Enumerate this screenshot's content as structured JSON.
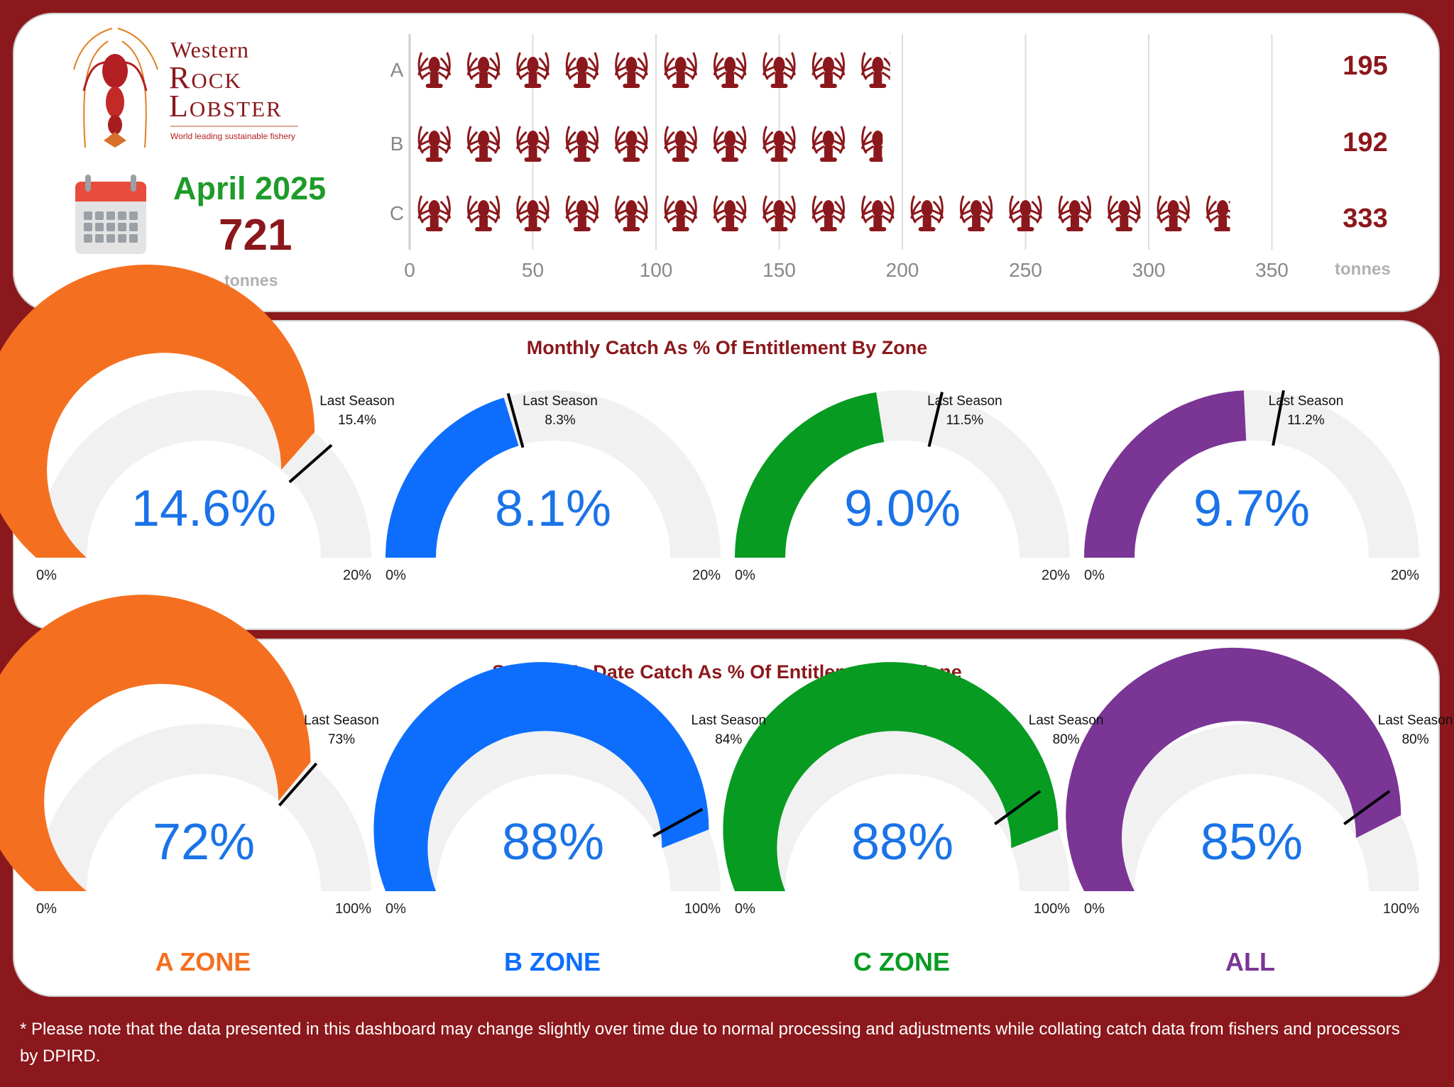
{
  "logo": {
    "line1": "Western",
    "line2": "Rock",
    "line3": "Lobster",
    "tagline": "World leading sustainable fishery"
  },
  "summary": {
    "month": "April 2025",
    "total": "721",
    "unit": "tonnes",
    "icon": "calendar-icon"
  },
  "catch_chart": {
    "unit_label": "tonnes",
    "values_display": [
      "195",
      "192",
      "333"
    ]
  },
  "monthly": {
    "title": "Monthly Catch As % Of Entitlement By Zone",
    "last_season_label": "Last Season",
    "gauges": [
      {
        "value_label": "14.6%",
        "last_label": "15.4%",
        "min_label": "0%",
        "max_label": "20%"
      },
      {
        "value_label": "8.1%",
        "last_label": "8.3%",
        "min_label": "0%",
        "max_label": "20%"
      },
      {
        "value_label": "9.0%",
        "last_label": "11.5%",
        "min_label": "0%",
        "max_label": "20%"
      },
      {
        "value_label": "9.7%",
        "last_label": "11.2%",
        "min_label": "0%",
        "max_label": "20%"
      }
    ]
  },
  "season": {
    "title": "Season To Date Catch As % Of Entitlement By Zone",
    "last_season_label": "Last Season",
    "gauges": [
      {
        "value_label": "72%",
        "last_label": "73%",
        "min_label": "0%",
        "max_label": "100%"
      },
      {
        "value_label": "88%",
        "last_label": "84%",
        "min_label": "0%",
        "max_label": "100%"
      },
      {
        "value_label": "88%",
        "last_label": "80%",
        "min_label": "0%",
        "max_label": "100%"
      },
      {
        "value_label": "85%",
        "last_label": "80%",
        "min_label": "0%",
        "max_label": "100%"
      }
    ]
  },
  "zones": [
    "A ZONE",
    "B ZONE",
    "C ZONE",
    "ALL"
  ],
  "footnote": "* Please note that the data presented in this dashboard may change slightly over time due to normal processing and adjustments while collating catch data from fishers and processors by DPIRD.",
  "colors": {
    "background": "#8b181c",
    "brand_red": "#8b181c",
    "month_green": "#1e9b2a",
    "gauge_track": "#f1f1f1",
    "value_text": "#1a73e8",
    "zone_a": "#f47020",
    "zone_b": "#0d6efd",
    "zone_c": "#079b22",
    "zone_all": "#7a3595"
  },
  "chart_data": [
    {
      "type": "bar",
      "title": "",
      "xlabel": "",
      "ylabel": "",
      "categories": [
        "A",
        "B",
        "C"
      ],
      "values": [
        195,
        192,
        333
      ],
      "units": "tonnes",
      "xlim": [
        0,
        350
      ],
      "xticks": [
        0,
        50,
        100,
        150,
        200,
        250,
        300,
        350
      ],
      "grid": true,
      "orientation": "horizontal"
    },
    {
      "type": "gauge",
      "title": "Monthly Catch As % Of Entitlement By Zone",
      "categories": [
        "A ZONE",
        "B ZONE",
        "C ZONE",
        "ALL"
      ],
      "values": [
        14.6,
        8.1,
        9.0,
        9.7
      ],
      "last_season": [
        15.4,
        8.3,
        11.5,
        11.2
      ],
      "range": [
        0,
        20
      ],
      "units": "%"
    },
    {
      "type": "gauge",
      "title": "Season To Date Catch As % Of Entitlement By Zone",
      "categories": [
        "A ZONE",
        "B ZONE",
        "C ZONE",
        "ALL"
      ],
      "values": [
        72,
        88,
        88,
        85
      ],
      "last_season": [
        73,
        84,
        80,
        80
      ],
      "range": [
        0,
        100
      ],
      "units": "%"
    }
  ]
}
